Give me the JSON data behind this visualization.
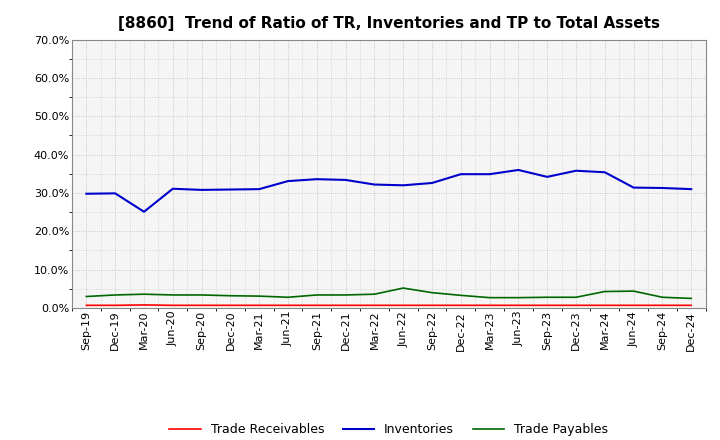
{
  "title": "[8860]  Trend of Ratio of TR, Inventories and TP to Total Assets",
  "x_labels": [
    "Sep-19",
    "Dec-19",
    "Mar-20",
    "Jun-20",
    "Sep-20",
    "Dec-20",
    "Mar-21",
    "Jun-21",
    "Sep-21",
    "Dec-21",
    "Mar-22",
    "Jun-22",
    "Sep-22",
    "Dec-22",
    "Mar-23",
    "Jun-23",
    "Sep-23",
    "Dec-23",
    "Mar-24",
    "Jun-24",
    "Sep-24",
    "Dec-24"
  ],
  "trade_receivables": [
    0.007,
    0.007,
    0.008,
    0.007,
    0.007,
    0.007,
    0.007,
    0.007,
    0.007,
    0.007,
    0.007,
    0.007,
    0.007,
    0.007,
    0.007,
    0.007,
    0.007,
    0.007,
    0.007,
    0.007,
    0.007,
    0.007
  ],
  "inventories": [
    0.298,
    0.299,
    0.251,
    0.311,
    0.308,
    0.309,
    0.31,
    0.331,
    0.336,
    0.334,
    0.322,
    0.32,
    0.326,
    0.349,
    0.349,
    0.36,
    0.342,
    0.358,
    0.354,
    0.314,
    0.313,
    0.31
  ],
  "trade_payables": [
    0.03,
    0.034,
    0.036,
    0.034,
    0.034,
    0.032,
    0.031,
    0.028,
    0.034,
    0.034,
    0.036,
    0.052,
    0.04,
    0.033,
    0.027,
    0.027,
    0.028,
    0.028,
    0.043,
    0.044,
    0.028,
    0.025
  ],
  "line_color_tr": "#ff0000",
  "line_color_inv": "#0000cc",
  "line_color_tp": "#006600",
  "ylim": [
    0.0,
    0.7
  ],
  "yticks": [
    0.0,
    0.1,
    0.2,
    0.3,
    0.4,
    0.5,
    0.6,
    0.7
  ],
  "legend_labels": [
    "Trade Receivables",
    "Inventories",
    "Trade Payables"
  ],
  "background_color": "#ffffff",
  "plot_bg_color": "#f5f5f5",
  "grid_color": "#bbbbbb",
  "title_fontsize": 11,
  "axis_fontsize": 8,
  "legend_fontsize": 9
}
